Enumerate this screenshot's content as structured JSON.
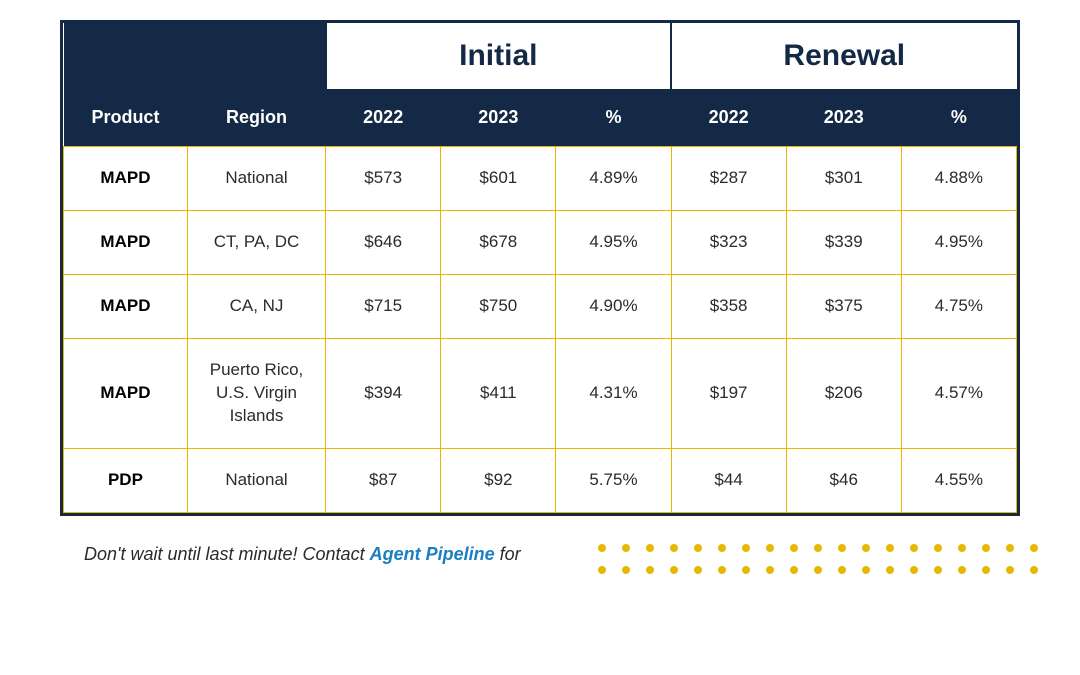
{
  "colors": {
    "header_bg": "#142946",
    "header_text": "#ffffff",
    "table_border": "#142946",
    "cell_border": "#e6b800",
    "group_header_text": "#142946",
    "body_text": "#2b2b2b",
    "product_text": "#000000",
    "dot_color": "#e6b800",
    "highlight_color": "#1a7fc1",
    "background": "#ffffff"
  },
  "table": {
    "groups": {
      "initial": "Initial",
      "renewal": "Renewal"
    },
    "columns": {
      "product": "Product",
      "region": "Region",
      "y2022": "2022",
      "y2023": "2023",
      "pct": "%"
    },
    "rows": [
      {
        "product": "MAPD",
        "region": "National",
        "i2022": "$573",
        "i2023": "$601",
        "ipct": "4.89%",
        "r2022": "$287",
        "r2023": "$301",
        "rpct": "4.88%"
      },
      {
        "product": "MAPD",
        "region": "CT, PA, DC",
        "i2022": "$646",
        "i2023": "$678",
        "ipct": "4.95%",
        "r2022": "$323",
        "r2023": "$339",
        "rpct": "4.95%"
      },
      {
        "product": "MAPD",
        "region": "CA, NJ",
        "i2022": "$715",
        "i2023": "$750",
        "ipct": "4.90%",
        "r2022": "$358",
        "r2023": "$375",
        "rpct": "4.75%"
      },
      {
        "product": "MAPD",
        "region": "Puerto Rico, U.S. Virgin Islands",
        "i2022": "$394",
        "i2023": "$411",
        "ipct": "4.31%",
        "r2022": "$197",
        "r2023": "$206",
        "rpct": "4.57%"
      },
      {
        "product": "PDP",
        "region": "National",
        "i2022": "$87",
        "i2023": "$92",
        "ipct": "5.75%",
        "r2022": "$44",
        "r2023": "$46",
        "rpct": "4.55%"
      }
    ]
  },
  "footer": {
    "pre_text": "Don't wait until last minute! Contact ",
    "highlight_text": "Agent Pipeline",
    "post_text": " for"
  },
  "dots": {
    "rows": 2,
    "cols": 19
  }
}
